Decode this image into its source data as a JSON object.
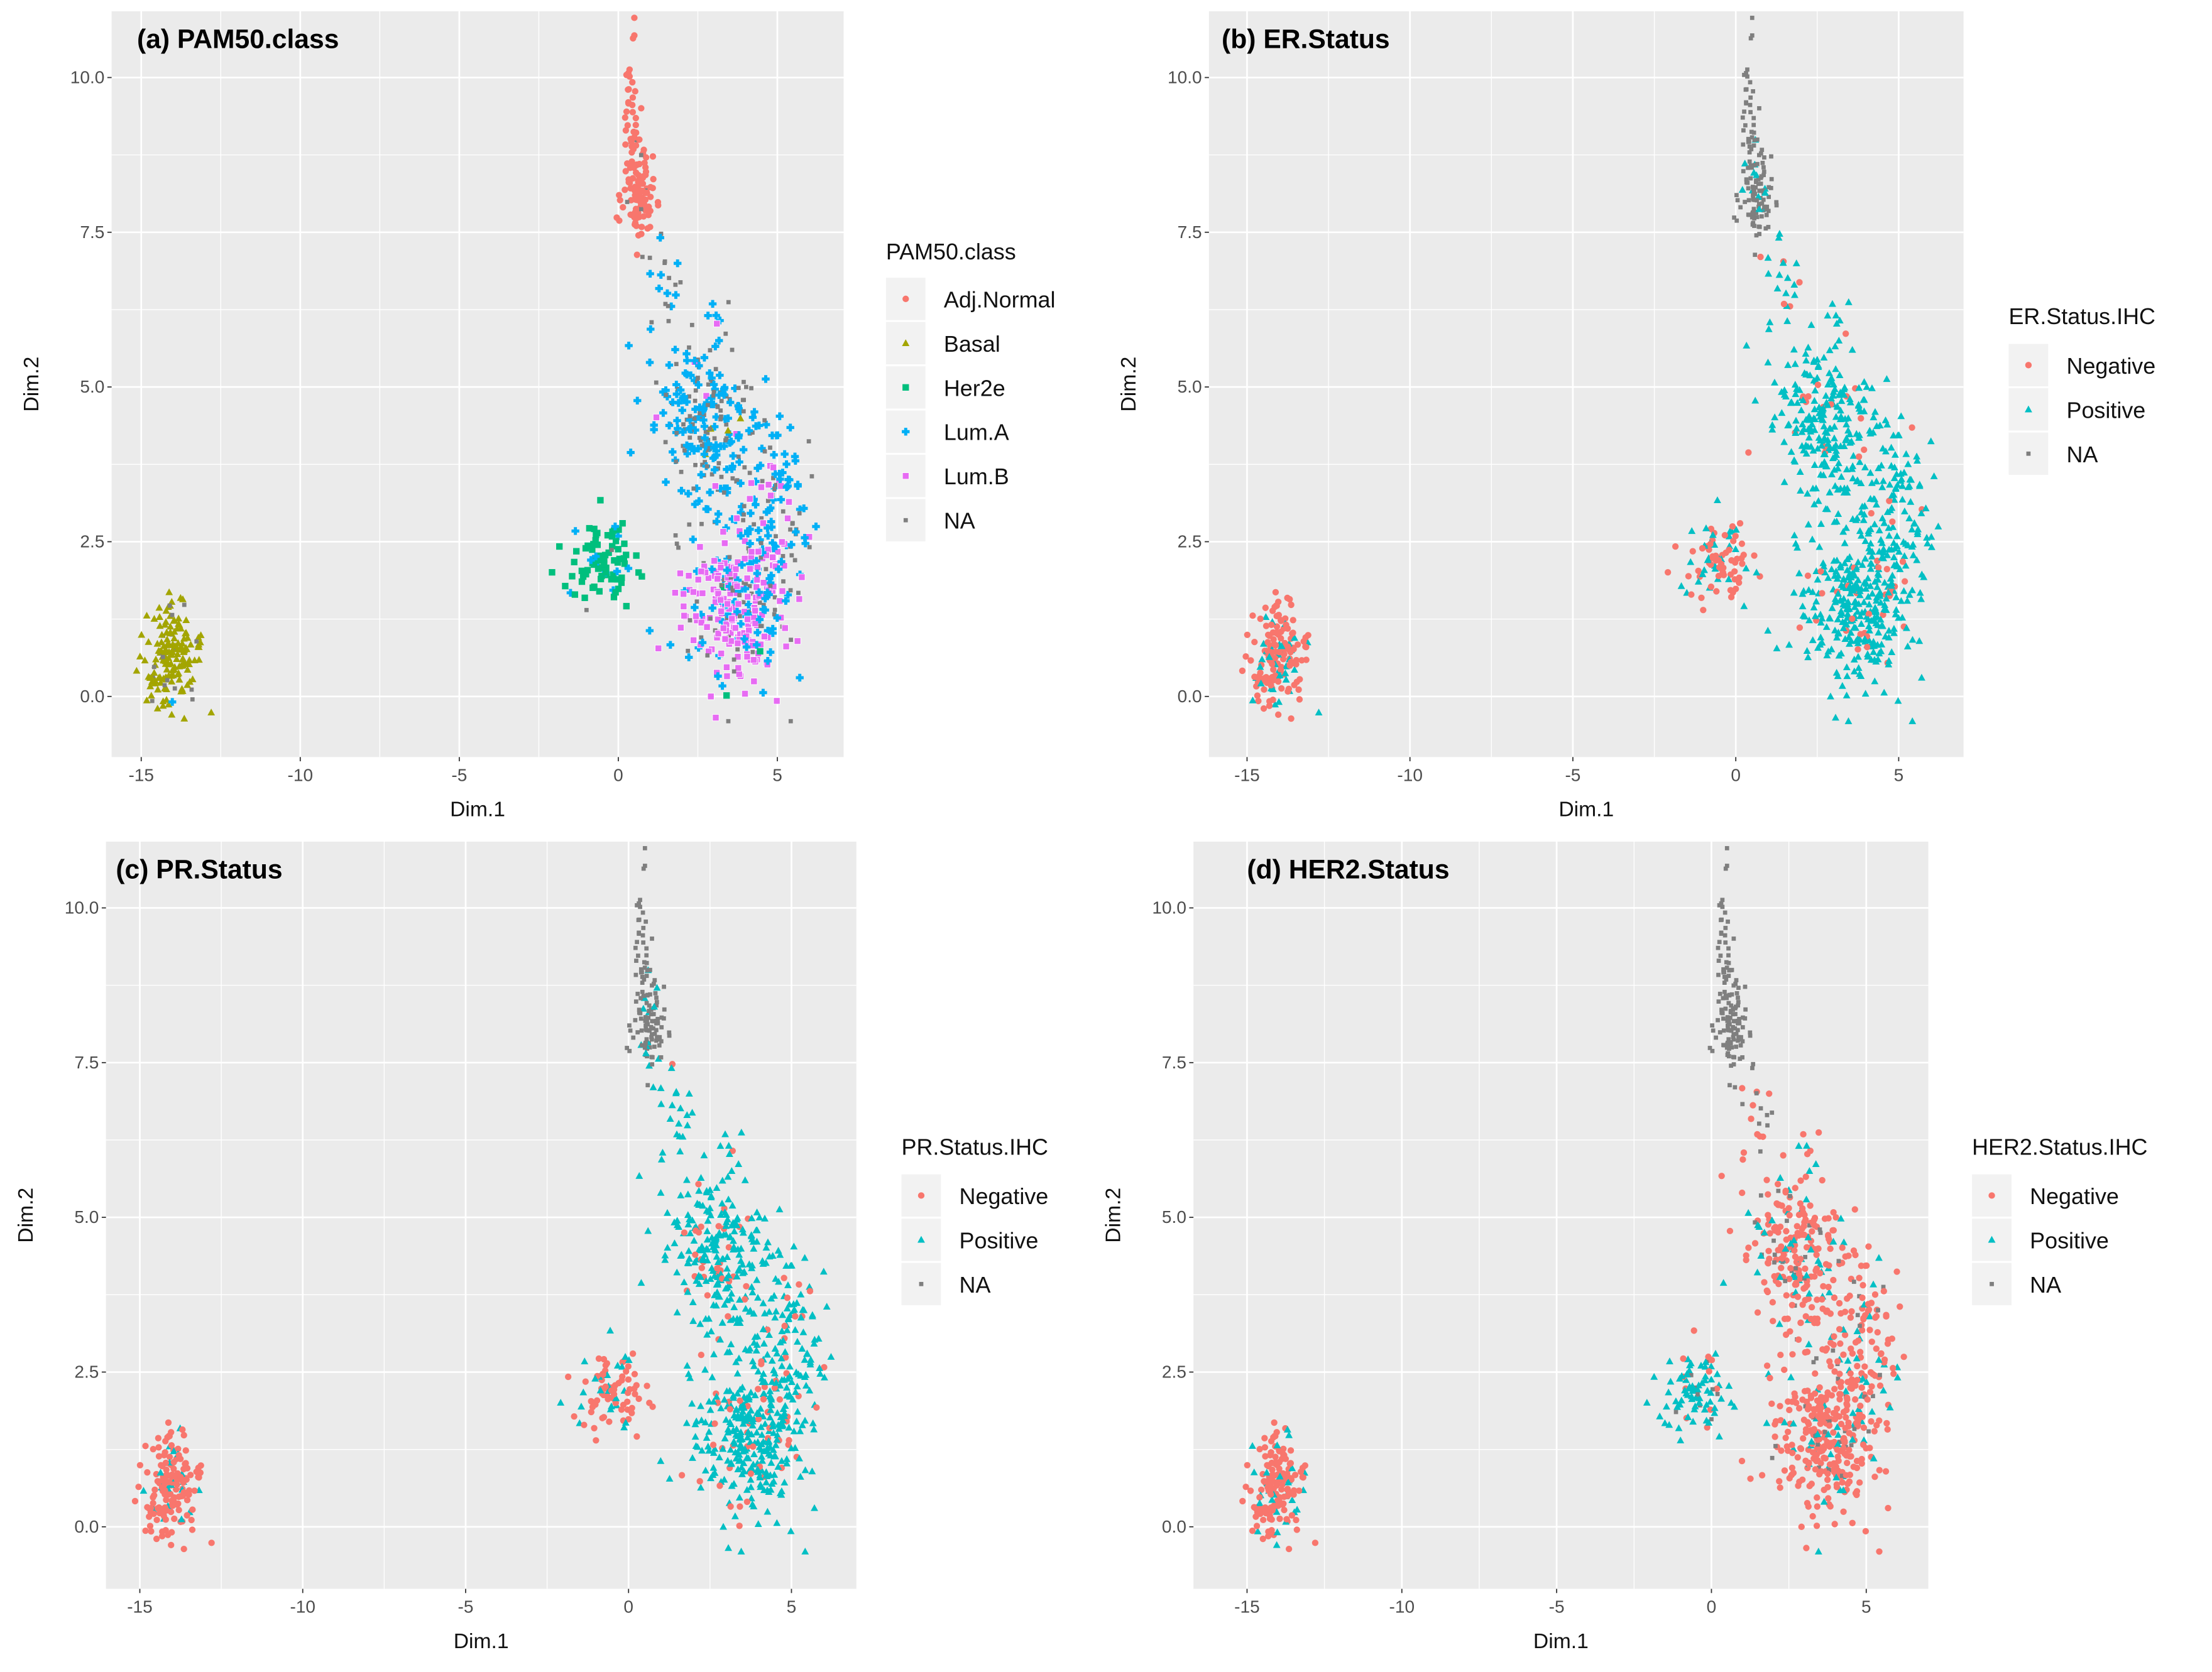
{
  "colors": {
    "panel_bg": "#EBEBEB",
    "grid": "#FFFFFF",
    "Adj.Normal": "#F8766D",
    "Basal": "#A3A500",
    "Her2e": "#00BF7D",
    "Lum.A": "#00B0F6",
    "Lum.B": "#E76BF3",
    "Negative": "#F8766D",
    "Positive": "#00BFC4",
    "NA": "#7F7F7F"
  },
  "chart_data": [
    {
      "type": "scatter",
      "title": "(a) PAM50.class",
      "xlabel": "Dim.1",
      "ylabel": "Dim.2",
      "xlim": [
        -16,
        7
      ],
      "ylim": [
        -1,
        10.8
      ],
      "xticks": [
        -15,
        -10,
        -5,
        0,
        5
      ],
      "xtick_labels": [
        "-15",
        "-10",
        "-5",
        "0",
        "5"
      ],
      "yticks": [
        0,
        2.5,
        5,
        7.5,
        10
      ],
      "ytick_labels": [
        "0.0",
        "2.5",
        "5.0",
        "7.5",
        "10.0"
      ],
      "grid": true,
      "legend": {
        "title": "PAM50.class",
        "placement": "right",
        "entries": [
          {
            "label": "Adj.Normal",
            "shape": "circle"
          },
          {
            "label": "Basal",
            "shape": "triangle"
          },
          {
            "label": "Her2e",
            "shape": "square"
          },
          {
            "label": "Lum.A",
            "shape": "plus"
          },
          {
            "label": "Lum.B",
            "shape": "boxed-x"
          },
          {
            "label": "NA",
            "shape": "small-square"
          }
        ]
      },
      "mix": {
        "left": {
          "Basal": 0.85,
          "NA": 0.13,
          "Lum.A": 0.02
        },
        "top": {
          "Adj.Normal": 0.95,
          "NA": 0.05
        },
        "tail": {
          "Adj.Normal": 1
        },
        "bridge": {
          "Lum.A": 0.5,
          "NA": 0.5
        },
        "her2": {
          "Her2e": 0.8,
          "NA": 0.1,
          "Lum.A": 0.1
        },
        "upper": {
          "Lum.A": 0.6,
          "NA": 0.35,
          "Basal": 0.02,
          "Lum.B": 0.03
        },
        "lower": {
          "Lum.B": 0.6,
          "NA": 0.2,
          "Lum.A": 0.18,
          "Her2e": 0.02
        },
        "mid": {
          "Lum.A": 0.55,
          "Lum.B": 0.2,
          "NA": 0.25
        }
      }
    },
    {
      "type": "scatter",
      "title": "(b) ER.Status",
      "xlabel": "Dim.1",
      "ylabel": "Dim.2",
      "xlim": [
        -16,
        7
      ],
      "ylim": [
        -1,
        10.8
      ],
      "xticks": [
        -15,
        -10,
        -5,
        0,
        5
      ],
      "xtick_labels": [
        "-15",
        "-10",
        "-5",
        "0",
        "5"
      ],
      "yticks": [
        0,
        2.5,
        5,
        7.5,
        10
      ],
      "ytick_labels": [
        "0.0",
        "2.5",
        "5.0",
        "7.5",
        "10.0"
      ],
      "grid": true,
      "legend": {
        "title": "ER.Status.IHC",
        "placement": "right",
        "entries": [
          {
            "label": "Negative",
            "shape": "circle"
          },
          {
            "label": "Positive",
            "shape": "triangle"
          },
          {
            "label": "NA",
            "shape": "small-square"
          }
        ]
      },
      "mix": {
        "left": {
          "Negative": 0.85,
          "Positive": 0.15
        },
        "top": {
          "NA": 0.9,
          "Positive": 0.1
        },
        "tail": {
          "NA": 1
        },
        "bridge": {
          "Positive": 0.8,
          "Negative": 0.2
        },
        "her2": {
          "Negative": 0.6,
          "Positive": 0.4
        },
        "upper": {
          "Positive": 0.92,
          "Negative": 0.08
        },
        "lower": {
          "Positive": 0.92,
          "Negative": 0.08
        },
        "mid": {
          "Positive": 0.92,
          "Negative": 0.08
        }
      }
    },
    {
      "type": "scatter",
      "title": "(c) PR.Status",
      "xlabel": "Dim.1",
      "ylabel": "Dim.2",
      "xlim": [
        -16,
        7
      ],
      "ylim": [
        -1,
        10.8
      ],
      "xticks": [
        -15,
        -10,
        -5,
        0,
        5
      ],
      "xtick_labels": [
        "-15",
        "-10",
        "-5",
        "0",
        "5"
      ],
      "yticks": [
        0,
        2.5,
        5,
        7.5,
        10
      ],
      "ytick_labels": [
        "0.0",
        "2.5",
        "5.0",
        "7.5",
        "10.0"
      ],
      "grid": true,
      "legend": {
        "title": "PR.Status.IHC",
        "placement": "right",
        "entries": [
          {
            "label": "Negative",
            "shape": "circle"
          },
          {
            "label": "Positive",
            "shape": "triangle"
          },
          {
            "label": "NA",
            "shape": "small-square"
          }
        ]
      },
      "mix": {
        "left": {
          "Negative": 0.88,
          "Positive": 0.12
        },
        "top": {
          "NA": 0.9,
          "Positive": 0.1
        },
        "tail": {
          "NA": 1
        },
        "bridge": {
          "Positive": 0.8,
          "Negative": 0.2
        },
        "her2": {
          "Negative": 0.7,
          "Positive": 0.3
        },
        "upper": {
          "Positive": 0.88,
          "Negative": 0.12
        },
        "lower": {
          "Positive": 0.85,
          "Negative": 0.15
        },
        "mid": {
          "Positive": 0.88,
          "Negative": 0.12
        }
      }
    },
    {
      "type": "scatter",
      "title": "(d) HER2.Status",
      "xlabel": "Dim.1",
      "ylabel": "Dim.2",
      "xlim": [
        -16,
        7
      ],
      "ylim": [
        -1,
        10.8
      ],
      "xticks": [
        -15,
        -10,
        -5,
        0,
        5
      ],
      "xtick_labels": [
        "-15",
        "-10",
        "-5",
        "0",
        "5"
      ],
      "yticks": [
        0,
        2.5,
        5,
        7.5,
        10
      ],
      "ytick_labels": [
        "0.0",
        "2.5",
        "5.0",
        "7.5",
        "10.0"
      ],
      "grid": true,
      "legend": {
        "title": "HER2.Status.IHC",
        "placement": "right",
        "entries": [
          {
            "label": "Negative",
            "shape": "circle"
          },
          {
            "label": "Positive",
            "shape": "triangle"
          },
          {
            "label": "NA",
            "shape": "small-square"
          }
        ]
      },
      "mix": {
        "left": {
          "Negative": 0.9,
          "Positive": 0.1
        },
        "top": {
          "NA": 1
        },
        "tail": {
          "NA": 1
        },
        "bridge": {
          "Negative": 0.5,
          "NA": 0.5
        },
        "her2": {
          "Positive": 0.7,
          "NA": 0.15,
          "Negative": 0.15
        },
        "upper": {
          "Negative": 0.75,
          "Positive": 0.15,
          "NA": 0.1
        },
        "lower": {
          "Negative": 0.75,
          "Positive": 0.15,
          "NA": 0.1
        },
        "mid": {
          "Negative": 0.75,
          "Positive": 0.15,
          "NA": 0.1
        }
      }
    }
  ],
  "clusters": [
    {
      "id": "left",
      "cx": -14.1,
      "cy": 0.6,
      "sx": 0.45,
      "sy": 0.45,
      "n": 170
    },
    {
      "id": "top",
      "cx": 0.6,
      "cy": 8.2,
      "sx": 0.25,
      "sy": 0.42,
      "n": 110
    },
    {
      "id": "tail",
      "cx": 0.4,
      "cy": 9.6,
      "sx": 0.12,
      "sy": 0.45,
      "n": 30
    },
    {
      "id": "bridge",
      "cx": 1.3,
      "cy": 6.6,
      "sx": 0.3,
      "sy": 0.5,
      "n": 20
    },
    {
      "id": "her2",
      "cx": -0.5,
      "cy": 2.2,
      "sx": 0.55,
      "sy": 0.33,
      "n": 90
    },
    {
      "id": "upper",
      "cx": 2.8,
      "cy": 4.3,
      "sx": 0.8,
      "sy": 0.8,
      "n": 260
    },
    {
      "id": "lower",
      "cx": 3.7,
      "cy": 1.4,
      "sx": 0.85,
      "sy": 0.65,
      "n": 280
    },
    {
      "id": "mid",
      "cx": 4.6,
      "cy": 2.8,
      "sx": 0.65,
      "sy": 0.8,
      "n": 150
    }
  ]
}
